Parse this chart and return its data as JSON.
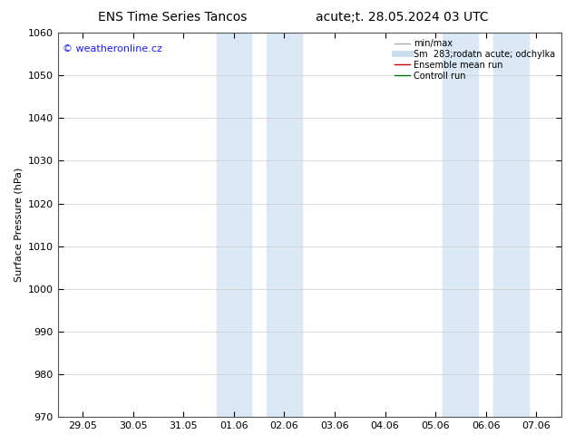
{
  "title_left": "ENS Time Series Tancos",
  "title_right": "acute;t. 28.05.2024 03 UTC",
  "ylabel": "Surface Pressure (hPa)",
  "ylim": [
    970,
    1060
  ],
  "yticks": [
    970,
    980,
    990,
    1000,
    1010,
    1020,
    1030,
    1040,
    1050,
    1060
  ],
  "xtick_labels": [
    "29.05",
    "30.05",
    "31.05",
    "01.06",
    "02.06",
    "03.06",
    "04.06",
    "05.06",
    "06.06",
    "07.06"
  ],
  "xtick_positions": [
    0,
    1,
    2,
    3,
    4,
    5,
    6,
    7,
    8,
    9
  ],
  "xlim": [
    -0.5,
    9.5
  ],
  "shaded_bands": [
    {
      "x_start": 2.65,
      "x_end": 3.35,
      "color": "#dae8f5"
    },
    {
      "x_start": 3.65,
      "x_end": 4.35,
      "color": "#dae8f5"
    },
    {
      "x_start": 7.15,
      "x_end": 7.85,
      "color": "#dae8f5"
    },
    {
      "x_start": 8.15,
      "x_end": 8.85,
      "color": "#dae8f5"
    }
  ],
  "watermark_text": "© weatheronline.cz",
  "watermark_color": "#1a1aff",
  "legend_items": [
    {
      "label": "min/max",
      "color": "#aaaaaa",
      "lw": 1.0,
      "linestyle": "-"
    },
    {
      "label": "Sm  283;rodatn acute; odchylka",
      "color": "#c8dded",
      "lw": 5,
      "linestyle": "-"
    },
    {
      "label": "Ensemble mean run",
      "color": "#cc0000",
      "lw": 1.0,
      "linestyle": "-"
    },
    {
      "label": "Controll run",
      "color": "#007700",
      "lw": 1.0,
      "linestyle": "-"
    }
  ],
  "background_color": "#ffffff",
  "grid_color": "#cccccc",
  "tick_label_fontsize": 8,
  "title_fontsize": 10,
  "ylabel_fontsize": 8
}
